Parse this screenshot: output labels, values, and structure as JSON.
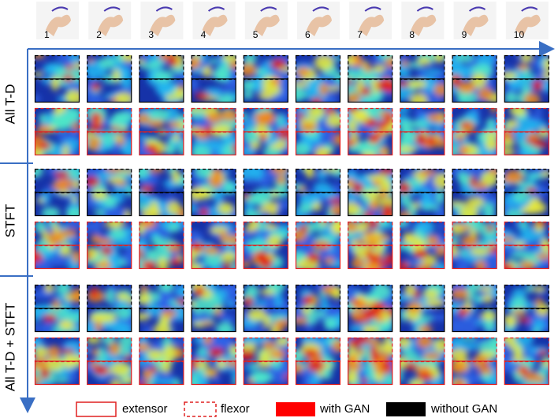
{
  "gestures": [
    "1",
    "2",
    "3",
    "4",
    "5",
    "6",
    "7",
    "8",
    "9",
    "10"
  ],
  "row_labels": [
    "All T-D",
    "STFT",
    "All T-D + STFT"
  ],
  "legend": [
    "extensor",
    "flexor",
    "with GAN",
    "without GAN"
  ]
}
